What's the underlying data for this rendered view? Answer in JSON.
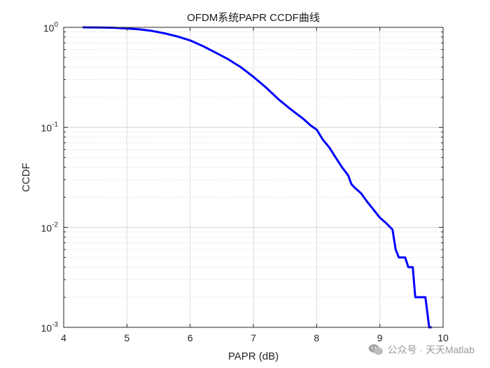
{
  "chart_data": {
    "type": "line",
    "title": "OFDM系统PAPR CCDF曲线",
    "xlabel": "PAPR (dB)",
    "ylabel": "CCDF",
    "xlim": [
      4,
      10
    ],
    "ylim": [
      0.001,
      1
    ],
    "yscale": "log",
    "grid": true,
    "x_ticks": [
      "4",
      "5",
      "6",
      "7",
      "8",
      "9",
      "10"
    ],
    "y_ticks": [
      {
        "base": "10",
        "exp": "0"
      },
      {
        "base": "10",
        "exp": "-1"
      },
      {
        "base": "10",
        "exp": "-2"
      },
      {
        "base": "10",
        "exp": "-3"
      }
    ],
    "series": [
      {
        "color": "#0000ff",
        "x": [
          4.3,
          4.6,
          4.8,
          5.0,
          5.2,
          5.4,
          5.6,
          5.8,
          6.0,
          6.2,
          6.4,
          6.6,
          6.8,
          7.0,
          7.2,
          7.4,
          7.6,
          7.8,
          7.9,
          8.0,
          8.1,
          8.2,
          8.3,
          8.4,
          8.5,
          8.55,
          8.6,
          8.7,
          8.8,
          8.9,
          9.0,
          9.1,
          9.2,
          9.25,
          9.3,
          9.35,
          9.4,
          9.45,
          9.5,
          9.52,
          9.56,
          9.6,
          9.65,
          9.72,
          9.78,
          9.82
        ],
        "y": [
          1.0,
          0.995,
          0.99,
          0.975,
          0.955,
          0.92,
          0.87,
          0.81,
          0.74,
          0.65,
          0.56,
          0.48,
          0.4,
          0.32,
          0.25,
          0.19,
          0.15,
          0.12,
          0.105,
          0.095,
          0.075,
          0.063,
          0.05,
          0.04,
          0.033,
          0.027,
          0.025,
          0.022,
          0.018,
          0.015,
          0.0125,
          0.011,
          0.0095,
          0.006,
          0.005,
          0.005,
          0.005,
          0.004,
          0.004,
          0.004,
          0.002,
          0.002,
          0.002,
          0.002,
          0.001,
          0.001
        ]
      }
    ]
  },
  "watermark": {
    "icon": "wechat-icon",
    "text": "公众号 · 天天Matlab"
  }
}
